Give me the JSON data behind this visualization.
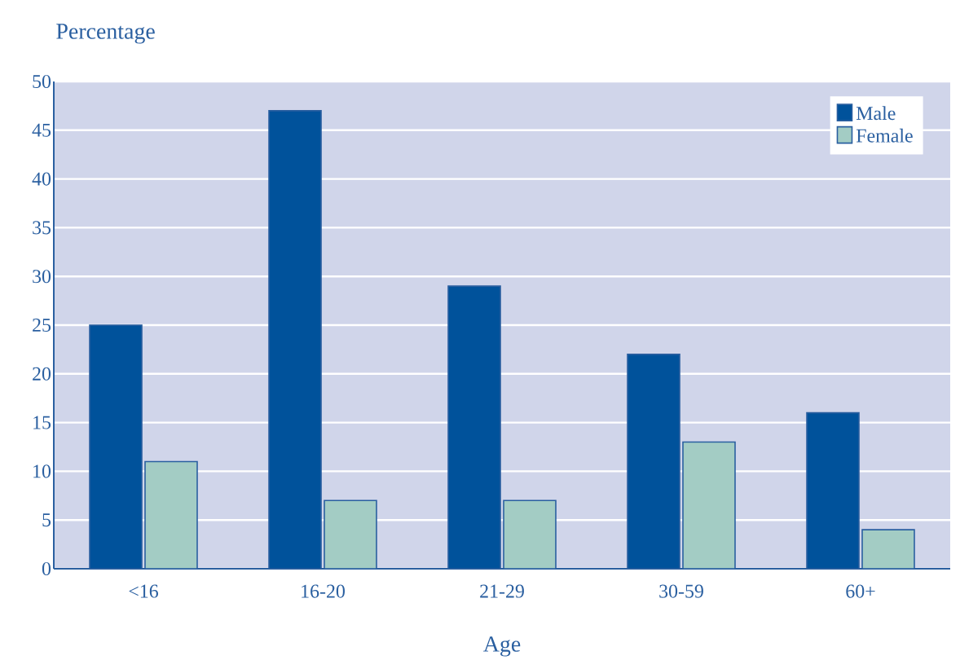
{
  "chart_data": {
    "type": "bar",
    "ylabel": "Percentage",
    "xlabel": "Age",
    "categories": [
      "<16",
      "16-20",
      "21-29",
      "30-59",
      "60+"
    ],
    "series": [
      {
        "name": "Male",
        "color": "#00529b",
        "values": [
          25,
          47,
          29,
          22,
          16
        ]
      },
      {
        "name": "Female",
        "color": "#a3ccc4",
        "values": [
          11,
          7,
          7,
          13,
          4
        ]
      }
    ],
    "ylim": [
      0,
      50
    ],
    "yticks": [
      0,
      5,
      10,
      15,
      20,
      25,
      30,
      35,
      40,
      45,
      50
    ],
    "grid": "y",
    "legend": "top right"
  }
}
